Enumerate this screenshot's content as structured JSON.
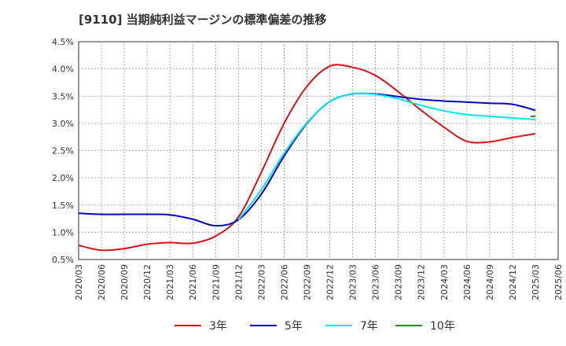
{
  "chart_data": {
    "type": "line",
    "title": "[9110]  当期純利益マージンの標準偏差の推移",
    "xlabel": "",
    "ylabel": "",
    "x_ticks": [
      "2020/03",
      "2020/06",
      "2020/09",
      "2020/12",
      "2021/03",
      "2021/06",
      "2021/09",
      "2021/12",
      "2022/03",
      "2022/06",
      "2022/09",
      "2022/12",
      "2023/03",
      "2023/06",
      "2023/09",
      "2023/12",
      "2024/03",
      "2024/06",
      "2024/09",
      "2024/12",
      "2025/03",
      "2025/06"
    ],
    "y_ticks": [
      "0.5%",
      "1.0%",
      "1.5%",
      "2.0%",
      "2.5%",
      "3.0%",
      "3.5%",
      "4.0%",
      "4.5%"
    ],
    "ylim": [
      0.5,
      4.5
    ],
    "grid": true,
    "legend_position": "bottom",
    "series": [
      {
        "name": "3年",
        "color": "#dd1111",
        "values": [
          0.76,
          0.67,
          0.7,
          0.78,
          0.81,
          0.8,
          0.93,
          1.28,
          2.1,
          3.0,
          3.68,
          4.05,
          4.03,
          3.88,
          3.58,
          3.24,
          2.93,
          2.67,
          2.66,
          2.74,
          2.81
        ]
      },
      {
        "name": "5年",
        "color": "#0000cc",
        "values": [
          1.35,
          1.33,
          1.33,
          1.33,
          1.32,
          1.24,
          1.12,
          1.23,
          1.7,
          2.4,
          3.0,
          3.4,
          3.54,
          3.54,
          3.49,
          3.44,
          3.41,
          3.39,
          3.37,
          3.35,
          3.24
        ]
      },
      {
        "name": "7年",
        "color": "#00e5ee",
        "start_index": 7,
        "values": [
          1.23,
          1.78,
          2.45,
          3.01,
          3.4,
          3.54,
          3.53,
          3.45,
          3.33,
          3.23,
          3.16,
          3.13,
          3.1,
          3.07
        ]
      },
      {
        "name": "10年",
        "color": "#228b22",
        "start_index": 20,
        "values": [
          3.13
        ]
      }
    ]
  }
}
